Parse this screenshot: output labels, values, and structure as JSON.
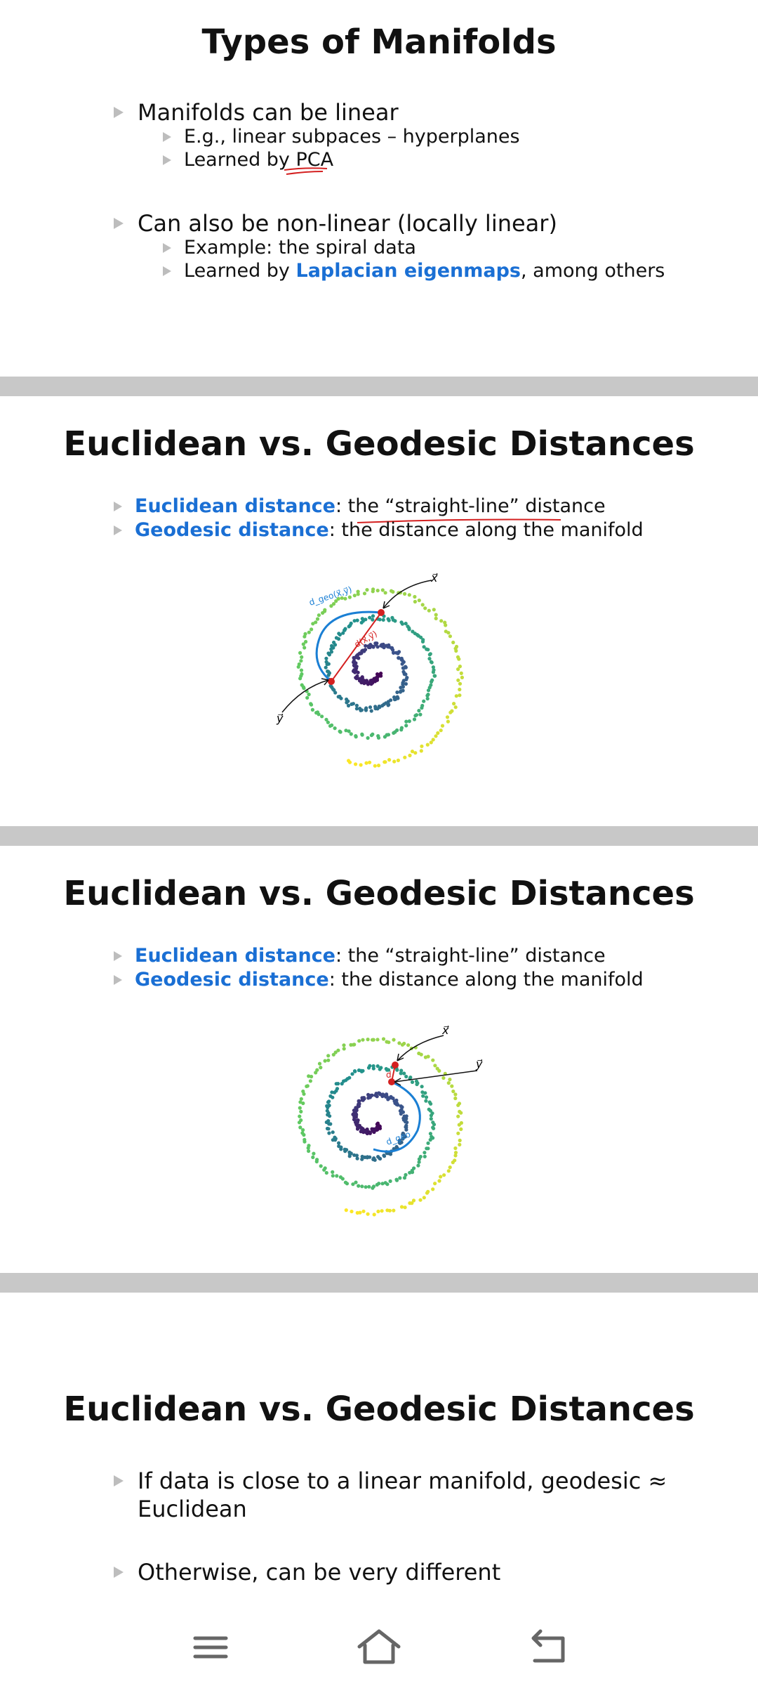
{
  "slides": [
    {
      "title": "Types of Manifolds",
      "bullets": [
        {
          "text": "Manifolds can be linear",
          "sub": [
            "E.g., linear subpaces – hyperplanes",
            "Learned by PCA"
          ]
        },
        {
          "text": "Can also be non-linear (locally linear)",
          "sub": [
            "Example: the spiral data"
          ],
          "sub2_prefix": "Learned by ",
          "sub2_highlight": "Laplacian eigenmaps",
          "sub2_suffix": ", among others"
        }
      ]
    },
    {
      "title": "Euclidean vs. Geodesic Distances",
      "bullet1_term": "Euclidean distance",
      "bullet1_rest": ": the “straight-line” distance",
      "bullet2_term": "Geodesic distance",
      "bullet2_rest": ": the distance along the manifold",
      "figure_labels": {
        "x": "x⃗",
        "y": "y⃗",
        "geo": "d_geo(x⃗,y⃗)",
        "euc": "d(x⃗,y⃗)"
      }
    },
    {
      "title": "Euclidean vs. Geodesic Distances",
      "bullet1_term": "Euclidean distance",
      "bullet1_rest": ": the “straight-line” distance",
      "bullet2_term": "Geodesic distance",
      "bullet2_rest": ": the distance along the manifold",
      "figure_labels": {
        "x": "x⃗",
        "y": "y⃗",
        "geo": "d_geo",
        "euc": "d"
      }
    },
    {
      "title": "Euclidean vs. Geodesic Distances",
      "bullets": [
        "If data is close to a linear manifold, geodesic ≈",
        "Euclidean",
        "Otherwise, can be very different"
      ]
    }
  ],
  "nav": {
    "menu_icon": "menu-icon",
    "home_icon": "home-icon",
    "back_icon": "back-icon"
  },
  "colors": {
    "highlight_blue": "#1a6fd4",
    "annotation_red": "#d42020",
    "separator": "#c8c8c8"
  }
}
